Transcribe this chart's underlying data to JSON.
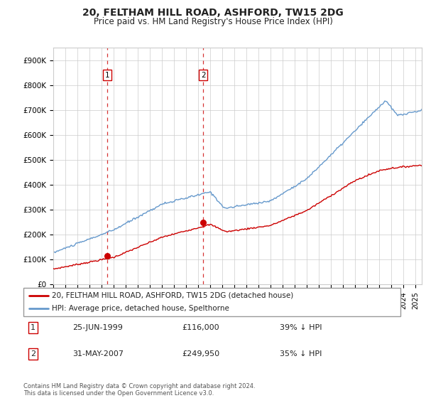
{
  "title": "20, FELTHAM HILL ROAD, ASHFORD, TW15 2DG",
  "subtitle": "Price paid vs. HM Land Registry's House Price Index (HPI)",
  "xlim_start": 1995.0,
  "xlim_end": 2025.5,
  "ylim": [
    0,
    950000
  ],
  "yticks": [
    0,
    100000,
    200000,
    300000,
    400000,
    500000,
    600000,
    700000,
    800000,
    900000
  ],
  "ytick_labels": [
    "£0",
    "£100K",
    "£200K",
    "£300K",
    "£400K",
    "£500K",
    "£600K",
    "£700K",
    "£800K",
    "£900K"
  ],
  "transaction1_date": 1999.48,
  "transaction1_price": 116000,
  "transaction2_date": 2007.42,
  "transaction2_price": 249950,
  "line_color_red": "#cc0000",
  "line_color_blue": "#6699cc",
  "legend1_text": "20, FELTHAM HILL ROAD, ASHFORD, TW15 2DG (detached house)",
  "legend2_text": "HPI: Average price, detached house, Spelthorne",
  "table_row1": [
    "1",
    "25-JUN-1999",
    "£116,000",
    "39% ↓ HPI"
  ],
  "table_row2": [
    "2",
    "31-MAY-2007",
    "£249,950",
    "35% ↓ HPI"
  ],
  "footer": "Contains HM Land Registry data © Crown copyright and database right 2024.\nThis data is licensed under the Open Government Licence v3.0.",
  "background_color": "#ffffff",
  "grid_color": "#cccccc"
}
